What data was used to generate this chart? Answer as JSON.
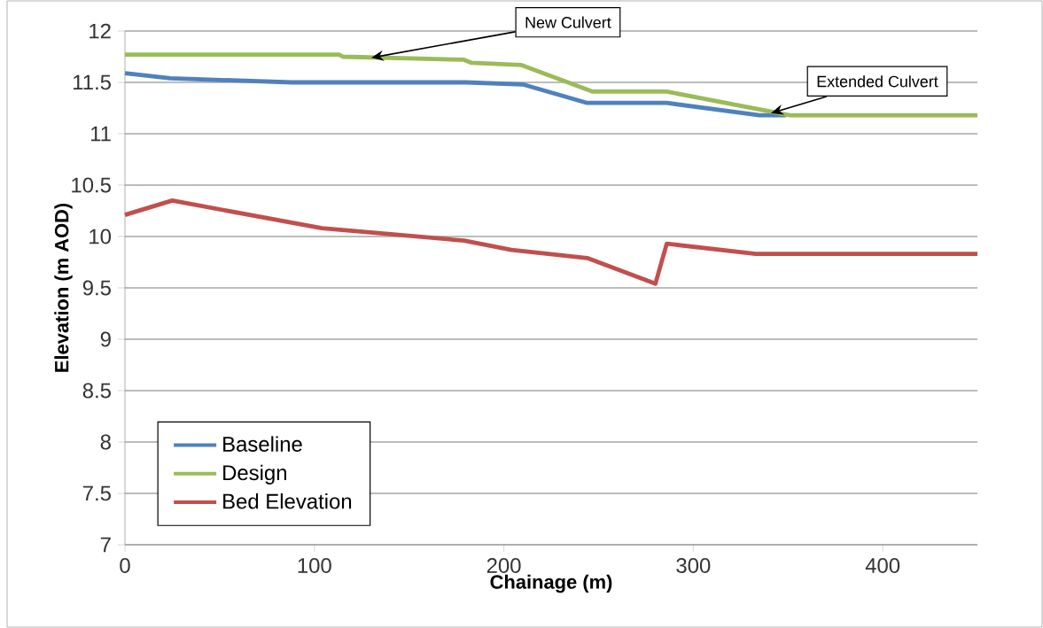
{
  "chart_data": {
    "type": "line",
    "xlabel": "Chainage (m)",
    "ylabel": "Elevation (m AOD)",
    "xlim": [
      0,
      450
    ],
    "xticks": [
      0,
      100,
      200,
      300,
      400
    ],
    "ylim": [
      7,
      12
    ],
    "yticks": [
      7,
      7.5,
      8,
      8.5,
      9,
      9.5,
      10,
      10.5,
      11,
      11.5,
      12
    ],
    "grid": "y",
    "legend": "bottom left",
    "marker": "none",
    "line_style": "solid",
    "annotations": [
      {
        "text": "New Culvert",
        "x": 130,
        "y": 11.74
      },
      {
        "text": "Extended Culvert",
        "x": 341,
        "y": 11.2
      }
    ],
    "series": [
      {
        "name": "Baseline",
        "color": "#4f81bd",
        "x": [
          0,
          24,
          88,
          180,
          210,
          244,
          286,
          335,
          349
        ],
        "values": [
          11.59,
          11.54,
          11.5,
          11.5,
          11.48,
          11.3,
          11.3,
          11.18,
          11.18
        ]
      },
      {
        "name": "Design",
        "color": "#9bbb59",
        "x": [
          0,
          113,
          115,
          179,
          183,
          209,
          247,
          286,
          351,
          450
        ],
        "values": [
          11.77,
          11.77,
          11.75,
          11.72,
          11.69,
          11.67,
          11.41,
          11.41,
          11.18,
          11.18
        ]
      },
      {
        "name": "Bed Elevation",
        "color": "#c0504d",
        "x": [
          0,
          25,
          104,
          179,
          204,
          244,
          280,
          286,
          333,
          450
        ],
        "values": [
          10.21,
          10.35,
          10.08,
          9.96,
          9.87,
          9.79,
          9.54,
          9.93,
          9.83,
          9.83
        ]
      }
    ]
  }
}
